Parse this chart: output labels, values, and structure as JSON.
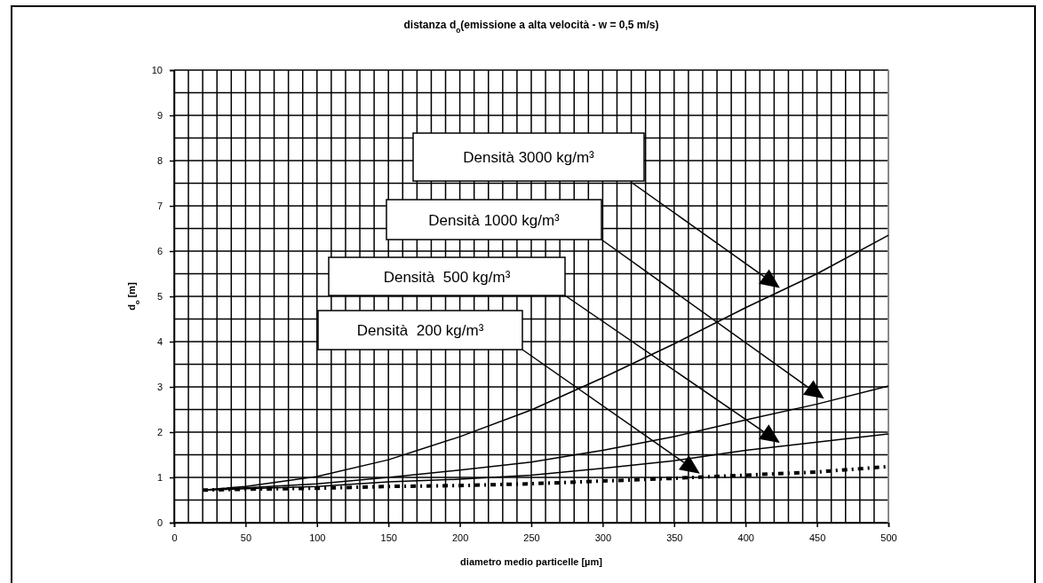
{
  "chart_data": {
    "type": "line",
    "title": "distanza d$_{o}$(emissione a alta velocità - w = 0,5 m/s)",
    "xlabel": "diametro medio particelle [µm]",
    "ylabel": "d$_{o}$ [m]",
    "x": [
      20,
      50,
      100,
      150,
      200,
      250,
      300,
      350,
      400,
      450,
      500
    ],
    "series": [
      {
        "name": "Densità 3000 kg/m³",
        "color": "#000000",
        "line_style": "solid",
        "values": [
          0.72,
          0.8,
          1.02,
          1.39,
          1.9,
          2.49,
          3.2,
          3.95,
          4.75,
          5.5,
          6.35
        ]
      },
      {
        "name": "Densità 1000 kg/m³",
        "color": "#000000",
        "line_style": "solid",
        "values": [
          0.72,
          0.77,
          0.86,
          1.0,
          1.16,
          1.34,
          1.6,
          1.9,
          2.27,
          2.62,
          3.02
        ]
      },
      {
        "name": "Densità  500 kg/m³",
        "color": "#000000",
        "line_style": "solid",
        "values": [
          0.72,
          0.75,
          0.8,
          0.9,
          0.96,
          1.05,
          1.2,
          1.37,
          1.6,
          1.78,
          1.96
        ]
      },
      {
        "name": "Densità  200 kg/m³",
        "color": "#000000",
        "line_style": "dotted",
        "values": [
          0.72,
          0.74,
          0.76,
          0.8,
          0.82,
          0.86,
          0.92,
          0.98,
          1.05,
          1.12,
          1.24
        ]
      }
    ],
    "xlim": [
      0,
      500
    ],
    "xticks": [
      0,
      {
        "value": 10,
        "label": null
      },
      {
        "value": 20,
        "label": null
      },
      {
        "value": 30,
        "label": null
      },
      {
        "value": 40,
        "label": null
      },
      50,
      {
        "value": 60,
        "label": null
      },
      {
        "value": 70,
        "label": null
      },
      {
        "value": 80,
        "label": null
      },
      {
        "value": 90,
        "label": null
      },
      100,
      {
        "value": 110,
        "label": null
      },
      {
        "value": 120,
        "label": null
      },
      {
        "value": 130,
        "label": null
      },
      {
        "value": 140,
        "label": null
      },
      150,
      {
        "value": 160,
        "label": null
      },
      {
        "value": 170,
        "label": null
      },
      {
        "value": 180,
        "label": null
      },
      {
        "value": 190,
        "label": null
      },
      200,
      {
        "value": 210,
        "label": null
      },
      {
        "value": 220,
        "label": null
      },
      {
        "value": 230,
        "label": null
      },
      {
        "value": 240,
        "label": null
      },
      250,
      {
        "value": 260,
        "label": null
      },
      {
        "value": 270,
        "label": null
      },
      {
        "value": 280,
        "label": null
      },
      {
        "value": 290,
        "label": null
      },
      300,
      {
        "value": 310,
        "label": null
      },
      {
        "value": 320,
        "label": null
      },
      {
        "value": 330,
        "label": null
      },
      {
        "value": 340,
        "label": null
      },
      350,
      {
        "value": 360,
        "label": null
      },
      {
        "value": 370,
        "label": null
      },
      {
        "value": 380,
        "label": null
      },
      {
        "value": 390,
        "label": null
      },
      400,
      {
        "value": 410,
        "label": null
      },
      {
        "value": 420,
        "label": null
      },
      {
        "value": 430,
        "label": null
      },
      {
        "value": 440,
        "label": null
      },
      450,
      {
        "value": 460,
        "label": null
      },
      {
        "value": 470,
        "label": null
      },
      {
        "value": 480,
        "label": null
      },
      {
        "value": 490,
        "label": null
      },
      500
    ],
    "ylim": [
      0,
      10
    ],
    "yticks": [
      0,
      {
        "value": 0.5,
        "label": null
      },
      1,
      {
        "value": 1.5,
        "label": null
      },
      2,
      {
        "value": 2.5,
        "label": null
      },
      3,
      {
        "value": 3.5,
        "label": null
      },
      4,
      {
        "value": 4.5,
        "label": null
      },
      5,
      {
        "value": 5.5,
        "label": null
      },
      6,
      {
        "value": 6.5,
        "label": null
      },
      7,
      {
        "value": 7.5,
        "label": null
      },
      8,
      {
        "value": 8.5,
        "label": null
      },
      9,
      {
        "value": 9.5,
        "label": null
      },
      10
    ],
    "grid": true,
    "legend": "top",
    "marker": "none"
  }
}
